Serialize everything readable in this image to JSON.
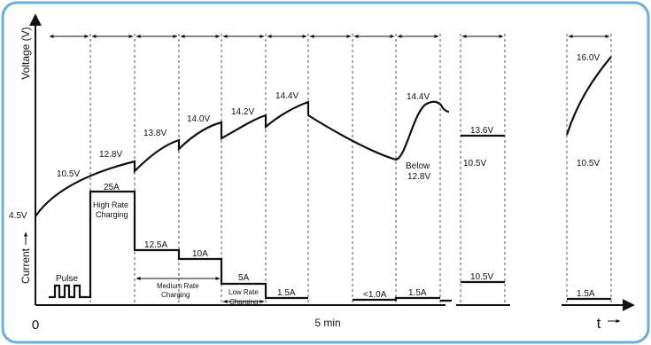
{
  "axes": {
    "y_label_voltage": "Voltage (V)",
    "y_label_current": "Current",
    "origin_label": "0",
    "x_mid_label": "5 min",
    "x_label": "t"
  },
  "voltage_labels": [
    "4.5V",
    "10.5V",
    "12.8V",
    "13.8V",
    "14.0V",
    "14.2V",
    "14.4V",
    "14.4V",
    "Below",
    "12.8V",
    "13.6V",
    "10.5V",
    "16.0V",
    "10.5V"
  ],
  "current_labels": [
    "Pulse",
    "25A",
    "High Rate",
    "Charging",
    "12.5A",
    "10A",
    "Medium Rate",
    "Charging",
    "5A",
    "Low Rate",
    "Charging",
    "1.5A",
    "<1.0A",
    "1.5A",
    "10.5V",
    "1.5A"
  ],
  "colors": {
    "border": "#6aaee0",
    "background": "#ffffff",
    "line": "#111111",
    "dashed": "#555555"
  }
}
